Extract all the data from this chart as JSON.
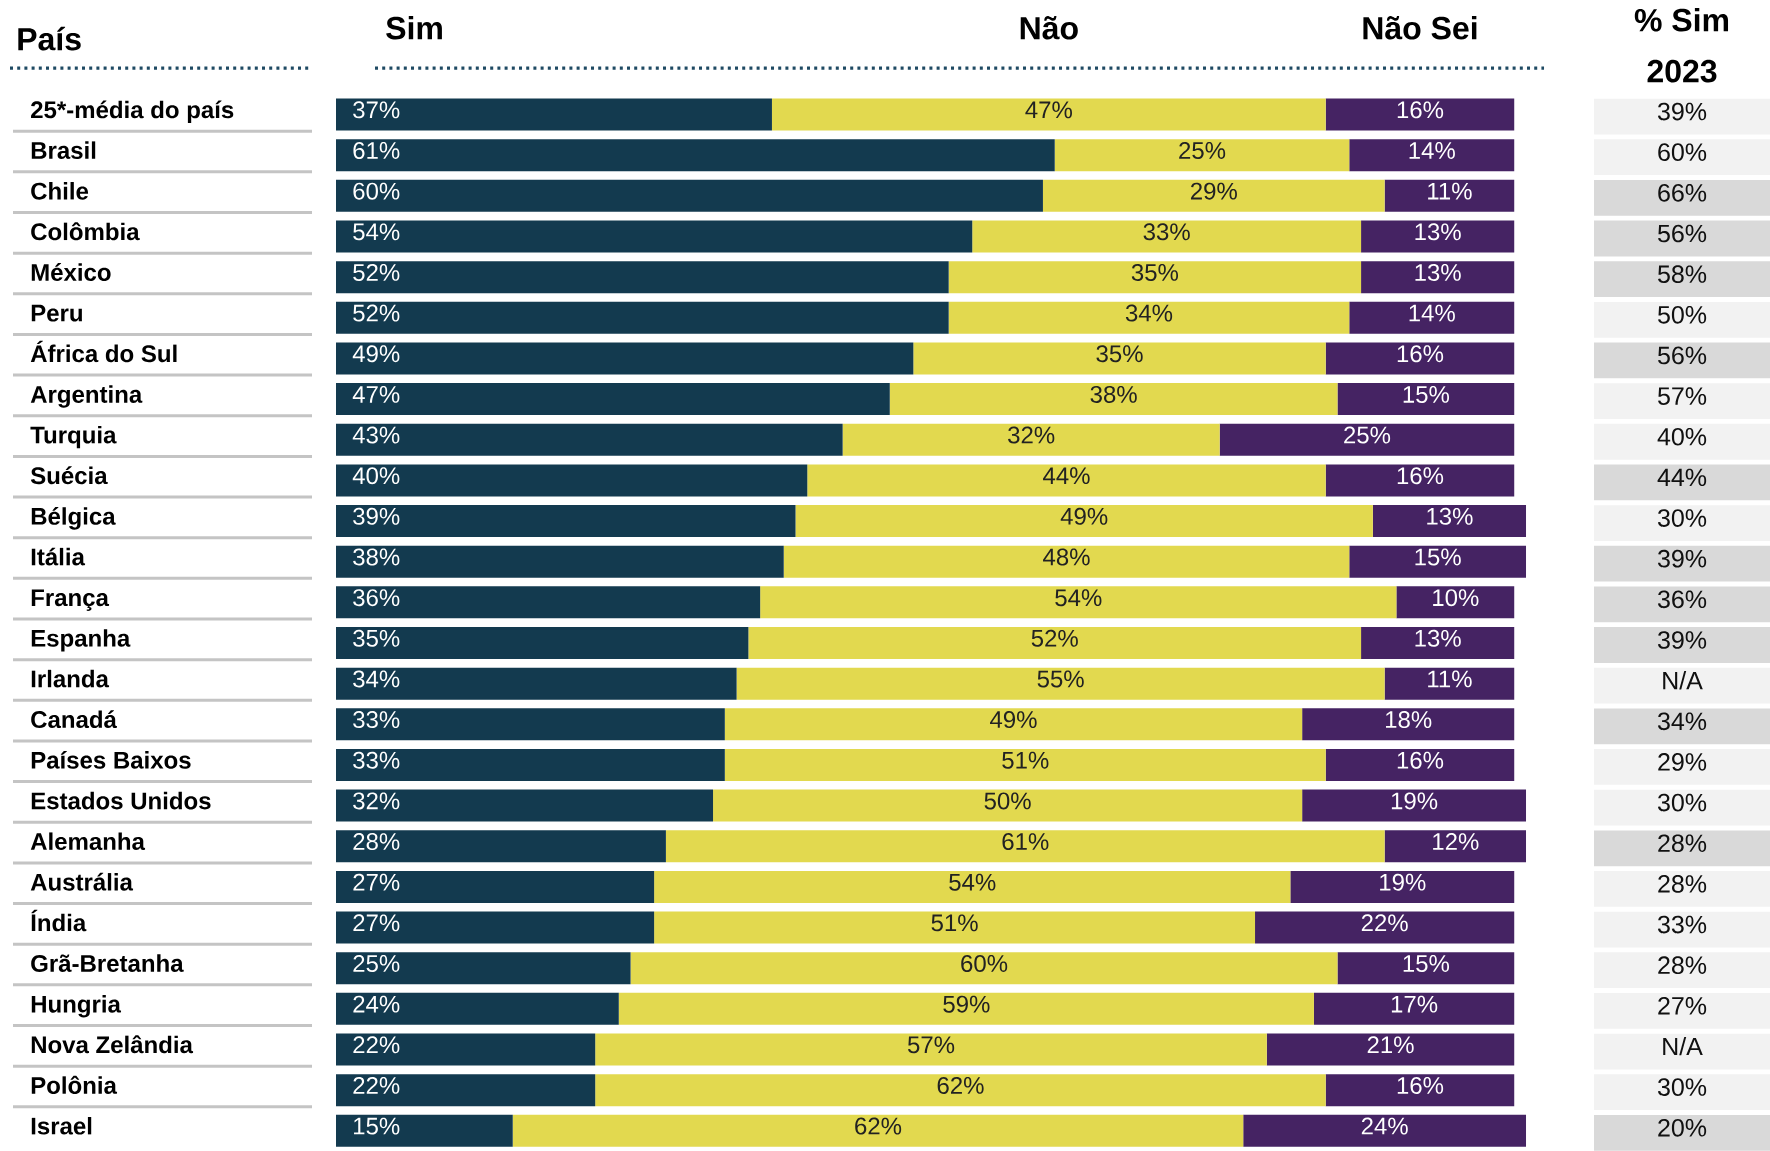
{
  "chart_data": [
    {
      "type": "bar",
      "orientation": "horizontal",
      "stacked": true,
      "ylabel": "País",
      "categories": [
        "25*-média do país",
        "Brasil",
        "Chile",
        "Colômbia",
        "México",
        "Peru",
        "África do Sul",
        "Argentina",
        "Turquia",
        "Suécia",
        "Bélgica",
        "Itália",
        "França",
        "Espanha",
        "Irlanda",
        "Canadá",
        "Países Baixos",
        "Estados Unidos",
        "Alemanha",
        "Austrália",
        "Índia",
        "Grã-Bretanha",
        "Hungria",
        "Nova Zelândia",
        "Polônia",
        "Israel"
      ],
      "series": [
        {
          "name": "Sim",
          "color": "#133a4f",
          "values": [
            37,
            61,
            60,
            54,
            52,
            52,
            49,
            47,
            43,
            40,
            39,
            38,
            36,
            35,
            34,
            33,
            33,
            32,
            28,
            27,
            27,
            25,
            24,
            22,
            22,
            15
          ],
          "value_labels": [
            "37%",
            "61%",
            "60%",
            "54%",
            "52%",
            "52%",
            "49%",
            "47%",
            "43%",
            "40%",
            "39%",
            "38%",
            "36%",
            "35%",
            "34%",
            "33%",
            "33%",
            "32%",
            "28%",
            "27%",
            "27%",
            "25%",
            "24%",
            "22%",
            "22%",
            "15%"
          ]
        },
        {
          "name": "Não",
          "color": "#e2d94f",
          "values": [
            47,
            25,
            29,
            33,
            35,
            34,
            35,
            38,
            32,
            44,
            49,
            48,
            54,
            52,
            55,
            49,
            51,
            50,
            61,
            54,
            51,
            60,
            59,
            57,
            62,
            62
          ],
          "value_labels": [
            "47%",
            "25%",
            "29%",
            "33%",
            "35%",
            "34%",
            "35%",
            "38%",
            "32%",
            "44%",
            "49%",
            "48%",
            "54%",
            "52%",
            "55%",
            "49%",
            "51%",
            "50%",
            "61%",
            "54%",
            "51%",
            "60%",
            "59%",
            "57%",
            "62%",
            "62%"
          ]
        },
        {
          "name": "Não Sei",
          "color": "#452363",
          "values": [
            16,
            14,
            11,
            13,
            13,
            14,
            16,
            15,
            25,
            16,
            13,
            15,
            10,
            13,
            11,
            18,
            16,
            19,
            12,
            19,
            22,
            15,
            17,
            21,
            16,
            24
          ],
          "value_labels": [
            "16%",
            "14%",
            "11%",
            "13%",
            "13%",
            "14%",
            "16%",
            "15%",
            "25%",
            "16%",
            "13%",
            "15%",
            "10%",
            "13%",
            "11%",
            "18%",
            "16%",
            "19%",
            "12%",
            "19%",
            "22%",
            "15%",
            "17%",
            "21%",
            "16%",
            "24%"
          ]
        }
      ]
    },
    {
      "type": "other",
      "title": "% Sim",
      "subtitle": "2023",
      "value_labels": [
        "39%",
        "60%",
        "66%",
        "56%",
        "58%",
        "50%",
        "56%",
        "57%",
        "40%",
        "44%",
        "30%",
        "39%",
        "36%",
        "39%",
        "N/A",
        "34%",
        "29%",
        "30%",
        "28%",
        "28%",
        "33%",
        "28%",
        "27%",
        "N/A",
        "30%",
        "20%"
      ],
      "colors": [
        "#f2f2f2",
        "#f2f2f2",
        "#d9d9d9",
        "#d9d9d9",
        "#d9d9d9",
        "#f2f2f2",
        "#d9d9d9",
        "#f2f2f2",
        "#f2f2f2",
        "#d9d9d9",
        "#f2f2f2",
        "#d9d9d9",
        "#d9d9d9",
        "#d9d9d9",
        "#f2f2f2",
        "#d9d9d9",
        "#f2f2f2",
        "#f2f2f2",
        "#d9d9d9",
        "#f2f2f2",
        "#f2f2f2",
        "#f2f2f2",
        "#f2f2f2",
        "#f2f2f2",
        "#f2f2f2",
        "#d9d9d9"
      ]
    }
  ]
}
